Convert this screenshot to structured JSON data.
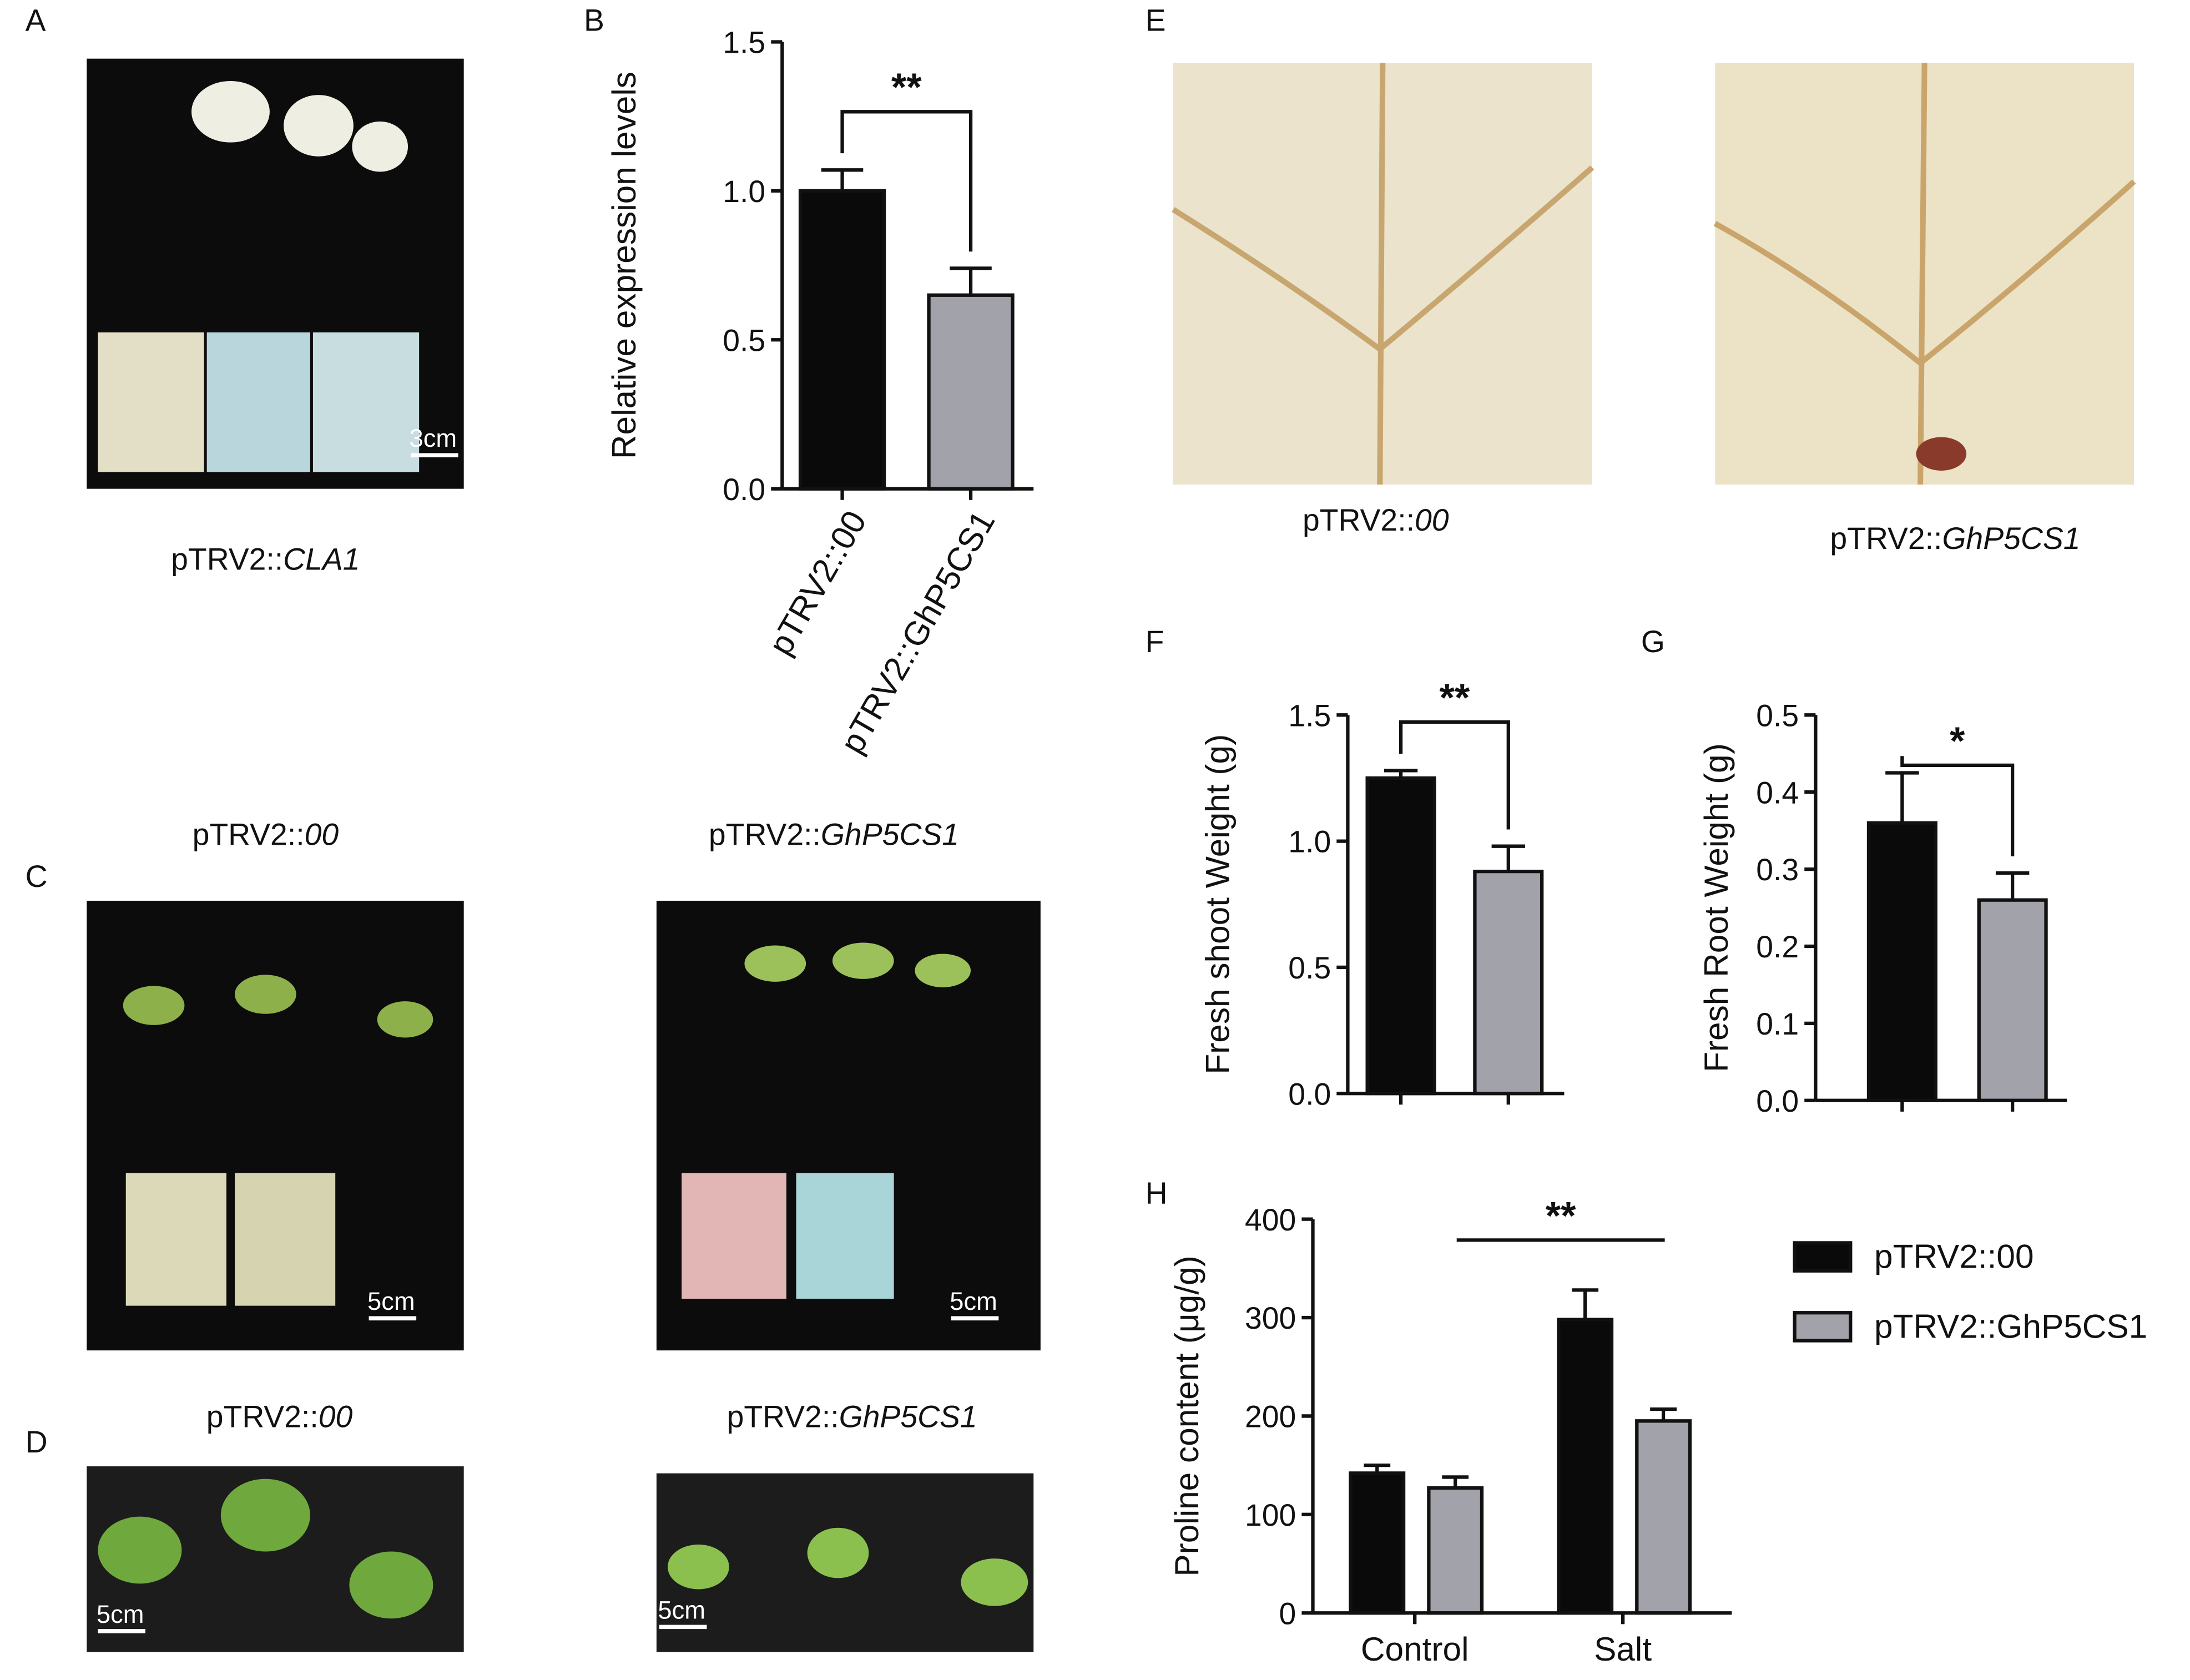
{
  "panel_labels": [
    "A",
    "B",
    "C",
    "D",
    "E",
    "F",
    "G",
    "H"
  ],
  "captions": [
    {
      "prefix": "pTRV2::",
      "gene": "CLA1"
    },
    {
      "prefix": "pTRV2::",
      "gene": "00"
    },
    {
      "prefix": "pTRV2::",
      "gene": "GhP5CS1"
    },
    {
      "prefix": "pTRV2::",
      "gene": "00"
    },
    {
      "prefix": "pTRV2::",
      "gene": "GhP5CS1"
    },
    {
      "prefix": "pTRV2::",
      "gene": "00"
    },
    {
      "prefix": "pTRV2::",
      "gene": "GhP5CS1"
    }
  ],
  "scale_bars": [
    "3cm",
    "5cm",
    "5cm",
    "5cm",
    "5cm"
  ],
  "chart_data": [
    {
      "type": "bar",
      "ylabel": "Relative expression levels",
      "categories": [
        "pTRV2::00",
        "pTRV2::GhP5CS1"
      ],
      "values": [
        1.0,
        0.65
      ],
      "errors": [
        0.07,
        0.09
      ],
      "colors": [
        "#0a0a0a",
        "#a2a2aa"
      ],
      "ylim": [
        0,
        1.5
      ],
      "yticks": [
        {
          "value": 0,
          "label": "0.0"
        },
        {
          "value": 0.5,
          "label": "0.5"
        },
        {
          "value": 1,
          "label": "1.0"
        },
        {
          "value": 1.5,
          "label": "1.5"
        }
      ],
      "annotation": "**"
    },
    {
      "type": "bar",
      "ylabel": "Fresh shoot Weight (g)",
      "values": [
        1.25,
        0.88
      ],
      "errors": [
        0.03,
        0.1
      ],
      "colors": [
        "#0a0a0a",
        "#a2a2aa"
      ],
      "ylim": [
        0,
        1.5
      ],
      "yticks": [
        {
          "value": 0,
          "label": "0.0"
        },
        {
          "value": 0.5,
          "label": "0.5"
        },
        {
          "value": 1,
          "label": "1.0"
        },
        {
          "value": 1.5,
          "label": "1.5"
        }
      ],
      "annotation": "**"
    },
    {
      "type": "bar",
      "ylabel": "Fresh Root Weight (g)",
      "values": [
        0.36,
        0.26
      ],
      "errors": [
        0.065,
        0.035
      ],
      "colors": [
        "#0a0a0a",
        "#a2a2aa"
      ],
      "ylim": [
        0,
        0.5
      ],
      "yticks": [
        {
          "value": 0,
          "label": "0.0"
        },
        0.1,
        0.2,
        0.3,
        0.4,
        0.5
      ],
      "annotation": "*"
    },
    {
      "type": "grouped_bar",
      "ylabel": "Proline content (μg/g)",
      "categories": [
        "Control",
        "Salt"
      ],
      "series": [
        {
          "name": "pTRV2::00",
          "color": "#0a0a0a",
          "values": [
            142,
            298
          ],
          "errors": [
            8,
            30
          ]
        },
        {
          "name": "pTRV2::GhP5CS1",
          "color": "#a2a2aa",
          "values": [
            127,
            195
          ],
          "errors": [
            11,
            12
          ]
        }
      ],
      "ylim": [
        0,
        400
      ],
      "yticks": [
        0,
        100,
        200,
        300,
        400
      ],
      "legend": "right",
      "annotation": "**"
    }
  ]
}
